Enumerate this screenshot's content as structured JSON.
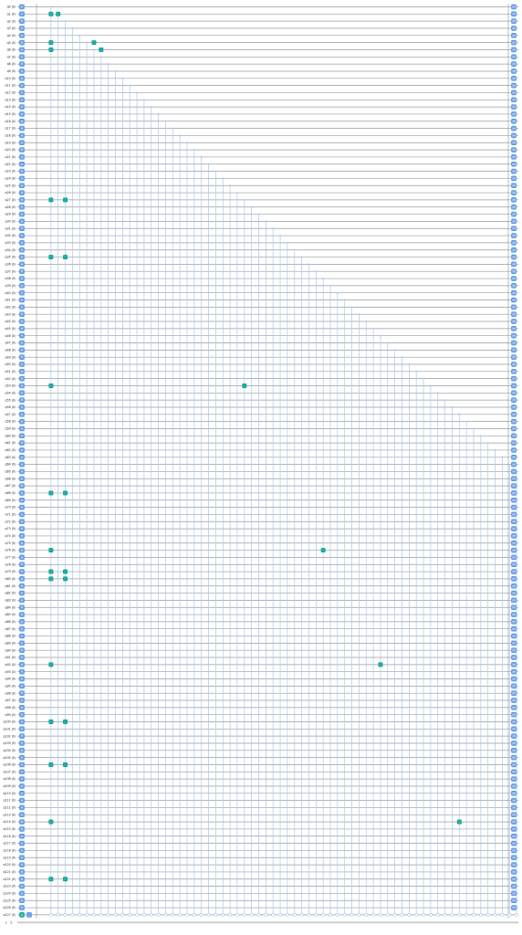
{
  "circuit": {
    "qubit_prefix": "q",
    "num_qubits": 128,
    "initial_state": "|0⟩",
    "classical_register_label": "c",
    "classical_register_size": "1",
    "colors": {
      "wire": "#9a9a9a",
      "gate_fill": "#6ea6f0",
      "gate_border": "#3f7fd6",
      "x_gate_fill": "#16b3a8",
      "x_gate_border": "#0e8d84",
      "control_line": "#a9c8f2",
      "measure_fill": "#6ea6f0",
      "classical_wire": "#9a9a9a"
    },
    "gate_labels": {
      "hadamard": "H",
      "x": "X",
      "measure": "M"
    },
    "x_gates": [
      {
        "qubit": 1,
        "column": 1
      },
      {
        "qubit": 1,
        "column": 2
      },
      {
        "qubit": 5,
        "column": 1
      },
      {
        "qubit": 5,
        "column": 7
      },
      {
        "qubit": 6,
        "column": 1
      },
      {
        "qubit": 6,
        "column": 8
      },
      {
        "qubit": 27,
        "column": 1
      },
      {
        "qubit": 27,
        "column": 3
      },
      {
        "qubit": 35,
        "column": 1
      },
      {
        "qubit": 35,
        "column": 3
      },
      {
        "qubit": 53,
        "column": 1
      },
      {
        "qubit": 53,
        "column": 28
      },
      {
        "qubit": 68,
        "column": 1
      },
      {
        "qubit": 68,
        "column": 3
      },
      {
        "qubit": 76,
        "column": 1
      },
      {
        "qubit": 76,
        "column": 39
      },
      {
        "qubit": 79,
        "column": 1
      },
      {
        "qubit": 79,
        "column": 3
      },
      {
        "qubit": 80,
        "column": 1
      },
      {
        "qubit": 80,
        "column": 3
      },
      {
        "qubit": 92,
        "column": 1
      },
      {
        "qubit": 92,
        "column": 47
      },
      {
        "qubit": 100,
        "column": 1
      },
      {
        "qubit": 100,
        "column": 3
      },
      {
        "qubit": 106,
        "column": 1
      },
      {
        "qubit": 106,
        "column": 3
      },
      {
        "qubit": 114,
        "column": 1
      },
      {
        "qubit": 114,
        "column": 58
      },
      {
        "qubit": 122,
        "column": 1
      },
      {
        "qubit": 122,
        "column": 3
      }
    ],
    "controlled_gates": {
      "target_qubit": 127,
      "first_column": 1,
      "last_column": 66
    }
  }
}
